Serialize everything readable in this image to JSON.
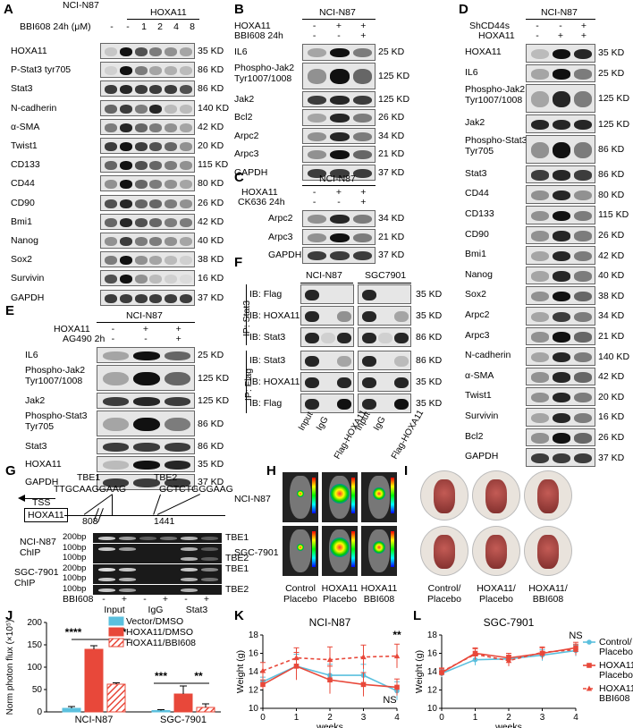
{
  "panels": {
    "A": "A",
    "B": "B",
    "C": "C",
    "D": "D",
    "E": "E",
    "F": "F",
    "G": "G",
    "H": "H",
    "I": "I",
    "J": "J",
    "K": "K",
    "L": "L"
  },
  "A": {
    "cell": "NCI-N87",
    "gene": "HOXA11",
    "treat": "BBI608 24h (μM)",
    "cols": [
      "-",
      "-",
      "1",
      "2",
      "4",
      "8"
    ],
    "rows": [
      {
        "name": "HOXA11",
        "kd": "35 KD"
      },
      {
        "name": "P-Stat3 tyr705",
        "kd": "86 KD"
      },
      {
        "name": "Stat3",
        "kd": "86 KD"
      },
      {
        "name": "N-cadherin",
        "kd": "140 KD"
      },
      {
        "name": "α-SMA",
        "kd": "42 KD"
      },
      {
        "name": "Twist1",
        "kd": "20 KD"
      },
      {
        "name": "CD133",
        "kd": "115 KD"
      },
      {
        "name": "CD44",
        "kd": "80 KD"
      },
      {
        "name": "CD90",
        "kd": "26 KD"
      },
      {
        "name": "Bmi1",
        "kd": "42 KD"
      },
      {
        "name": "Nanog",
        "kd": "40 KD"
      },
      {
        "name": "Sox2",
        "kd": "38 KD"
      },
      {
        "name": "Survivin",
        "kd": "16 KD"
      },
      {
        "name": "GAPDH",
        "kd": "37 KD"
      }
    ]
  },
  "B": {
    "cell": "NCI-N87",
    "r1": "HOXA11",
    "r2": "BBI608 24h",
    "r1v": [
      "-",
      "+",
      "+"
    ],
    "r2v": [
      "-",
      "-",
      "+"
    ],
    "rows": [
      {
        "name": "IL6",
        "kd": "25 KD"
      },
      {
        "name": "Phospho-Jak2\nTyr1007/1008",
        "kd": "125 KD"
      },
      {
        "name": "Jak2",
        "kd": "125 KD"
      },
      {
        "name": "Bcl2",
        "kd": "26 KD"
      },
      {
        "name": "Arpc2",
        "kd": "34 KD"
      },
      {
        "name": "Arpc3",
        "kd": "21 KD"
      },
      {
        "name": "GAPDH",
        "kd": "37 KD"
      }
    ]
  },
  "C": {
    "cell": "NCI-N87",
    "r1": "HOXA11",
    "r2": "CK636 24h",
    "r1v": [
      "-",
      "+",
      "+"
    ],
    "r2v": [
      "-",
      "-",
      "+"
    ],
    "rows": [
      {
        "name": "Arpc2",
        "kd": "34 KD"
      },
      {
        "name": "Arpc3",
        "kd": "21 KD"
      },
      {
        "name": "GAPDH",
        "kd": "37 KD"
      }
    ]
  },
  "D": {
    "cell": "NCI-N87",
    "r1": "ShCD44s",
    "r2": "HOXA11",
    "r1v": [
      "-",
      "-",
      "+"
    ],
    "r2v": [
      "-",
      "+",
      "+"
    ],
    "rows": [
      {
        "name": "HOXA11",
        "kd": "35 KD"
      },
      {
        "name": "IL6",
        "kd": "25 KD"
      },
      {
        "name": "Phospho-Jak2\nTyr1007/1008",
        "kd": "125 KD"
      },
      {
        "name": "Jak2",
        "kd": "125 KD"
      },
      {
        "name": "Phospho-Stat3\nTyr705",
        "kd": "86 KD"
      },
      {
        "name": "Stat3",
        "kd": "86 KD"
      },
      {
        "name": "CD44",
        "kd": "80 KD"
      },
      {
        "name": "CD133",
        "kd": "115 KD"
      },
      {
        "name": "CD90",
        "kd": "26 KD"
      },
      {
        "name": "Bmi1",
        "kd": "42 KD"
      },
      {
        "name": "Nanog",
        "kd": "40 KD"
      },
      {
        "name": "Sox2",
        "kd": "38 KD"
      },
      {
        "name": "Arpc2",
        "kd": "34 KD"
      },
      {
        "name": "Arpc3",
        "kd": "21 KD"
      },
      {
        "name": "N-cadherin",
        "kd": "140 KD"
      },
      {
        "name": "α-SMA",
        "kd": "42 KD"
      },
      {
        "name": "Twist1",
        "kd": "20 KD"
      },
      {
        "name": "Survivin",
        "kd": "16 KD"
      },
      {
        "name": "Bcl2",
        "kd": "26 KD"
      },
      {
        "name": "GAPDH",
        "kd": "37 KD"
      }
    ]
  },
  "E": {
    "cell": "NCI-N87",
    "r1": "HOXA11",
    "r2": "AG490 2h",
    "r1v": [
      "-",
      "+",
      "+"
    ],
    "r2v": [
      "-",
      "-",
      "+"
    ],
    "rows": [
      {
        "name": "IL6",
        "kd": "25 KD"
      },
      {
        "name": "Phospho-Jak2\nTyr1007/1008",
        "kd": "125 KD"
      },
      {
        "name": "Jak2",
        "kd": "125 KD"
      },
      {
        "name": "Phospho-Stat3\nTyr705",
        "kd": "86 KD"
      },
      {
        "name": "Stat3",
        "kd": "86 KD"
      },
      {
        "name": "HOXA11",
        "kd": "35 KD"
      },
      {
        "name": "GAPDH",
        "kd": "37 KD"
      }
    ]
  },
  "F": {
    "cell1": "NCI-N87",
    "cell2": "SGC7901",
    "ip1": "IP: Stat3",
    "ip2": "IP: Flag",
    "rows": [
      {
        "name": "IB: Flag",
        "kd": "35 KD"
      },
      {
        "name": "IB: HOXA11",
        "kd": "35 KD"
      },
      {
        "name": "IB: Stat3",
        "kd": "86 KD"
      },
      {
        "name": "IB: Stat3",
        "kd": "86 KD"
      },
      {
        "name": "IB: HOXA11",
        "kd": "35 KD"
      },
      {
        "name": "IB: Flag",
        "kd": "35 KD"
      }
    ],
    "lanes": [
      "Input",
      "IgG",
      "Flag-HOXA11",
      "Input",
      "IgG",
      "Flag-HOXA11"
    ]
  },
  "G": {
    "tbe1": "TBE1",
    "tbe2": "TBE2",
    "seq1": "TTGCAAGGAAG",
    "seq2": "GCTCTGGGAAG",
    "tss": "TSS",
    "gene": "HOXA11",
    "pos1": "803",
    "pos2": "1441",
    "rows": [
      {
        "bp": "200bp",
        "lab": "",
        "tbe": "TBE1"
      },
      {
        "bp": "100bp",
        "lab": "",
        "tbe": ""
      },
      {
        "bp": "100bp",
        "lab": "",
        "tbe": "TBE2"
      },
      {
        "bp": "200bp",
        "lab": "",
        "tbe": "TBE1"
      },
      {
        "bp": "100bp",
        "lab": "",
        "tbe": ""
      },
      {
        "bp": "100bp",
        "lab": "",
        "tbe": "TBE2"
      }
    ],
    "chip1": "NCI-N87\nChIP",
    "chip2": "SGC-7901\nChIP",
    "bbi": "BBI608",
    "signs": [
      "-",
      "+",
      "-",
      "+",
      "-",
      "+"
    ],
    "lanes": [
      "Input",
      "IgG",
      "Stat3"
    ]
  },
  "H": {
    "row1": "NCI-N87",
    "row2": "SGC-7901",
    "cols": [
      "Control\nPlacebo",
      "HOXA11\nPlacebo",
      "HOXA11\nBBI608"
    ]
  },
  "I": {
    "cols": [
      "Control/\nPlacebo",
      "HOXA11/\nPlacebo",
      "HOXA11/\nBBI608"
    ]
  },
  "chart_data": [
    {
      "type": "bar",
      "id": "J",
      "ylabel": "Norm photon flux (×10⁵)",
      "ylim": [
        0,
        200
      ],
      "yticks": [
        0,
        50,
        100,
        150,
        200
      ],
      "categories": [
        "NCI-N87",
        "SGC-7901"
      ],
      "series": [
        {
          "name": "Vector/DMSO",
          "values": [
            8,
            3
          ],
          "errors": [
            4,
            2
          ],
          "color": "#5bc0de"
        },
        {
          "name": "HOXA11/DMSO",
          "values": [
            140,
            40
          ],
          "errors": [
            8,
            18
          ],
          "color": "#e8483a"
        },
        {
          "name": "HOXA11/BBI608",
          "values": [
            62,
            10
          ],
          "errors": [
            3,
            8
          ],
          "color": "#e8483a"
        }
      ],
      "annotations": [
        "****",
        "****",
        "***",
        "**"
      ]
    },
    {
      "type": "line",
      "id": "K",
      "title": "NCI-N87",
      "xlabel": "weeks",
      "ylabel": "Weight (g)",
      "x": [
        0,
        1,
        2,
        3,
        4
      ],
      "xlim": [
        0,
        4
      ],
      "ylim": [
        10,
        18
      ],
      "yticks": [
        10,
        12,
        14,
        16,
        18
      ],
      "series": [
        {
          "name": "Control/Placebo",
          "values": [
            12.9,
            14.6,
            13.6,
            13.6,
            11.9
          ],
          "errors": [
            0.5,
            1.3,
            1.2,
            1.2,
            1.0
          ],
          "color": "#5bc0de"
        },
        {
          "name": "HOXA11/Placebo",
          "values": [
            12.6,
            14.6,
            13.1,
            12.6,
            12.3
          ],
          "errors": [
            0.5,
            1.5,
            1.5,
            1.3,
            0.9
          ],
          "color": "#e8483a"
        },
        {
          "name": "HOXA11/BBI608",
          "values": [
            14.1,
            15.5,
            15.3,
            15.6,
            15.7
          ],
          "errors": [
            0.9,
            1.1,
            1.4,
            1.3,
            1.3
          ],
          "color": "#e8483a"
        }
      ],
      "annotations": [
        "**",
        "NS"
      ]
    },
    {
      "type": "line",
      "id": "L",
      "title": "SGC-7901",
      "xlabel": "weeks",
      "ylabel": "Weight (g)",
      "x": [
        0,
        1,
        2,
        3,
        4
      ],
      "xlim": [
        0,
        4
      ],
      "ylim": [
        10,
        18
      ],
      "yticks": [
        10,
        12,
        14,
        16,
        18
      ],
      "series": [
        {
          "name": "Control/Placebo",
          "values": [
            13.8,
            15.3,
            15.4,
            15.8,
            16.3
          ],
          "errors": [
            0.4,
            0.6,
            0.6,
            0.6,
            0.6
          ],
          "color": "#5bc0de"
        },
        {
          "name": "HOXA11/Placebo",
          "values": [
            13.9,
            16.0,
            15.5,
            16.0,
            16.6
          ],
          "errors": [
            0.4,
            0.6,
            0.5,
            0.6,
            0.6
          ],
          "color": "#e8483a"
        },
        {
          "name": "HOXA11/BBI608",
          "values": [
            14.0,
            15.9,
            15.2,
            16.1,
            16.4
          ],
          "errors": [
            0.4,
            0.6,
            0.6,
            0.6,
            0.6
          ],
          "color": "#e8483a"
        }
      ],
      "annotations": [
        "NS"
      ],
      "legend": [
        "Control/\nPlacebo",
        "HOXA11/\nPlacebo",
        "HOXA11/\nBBI608"
      ]
    }
  ]
}
